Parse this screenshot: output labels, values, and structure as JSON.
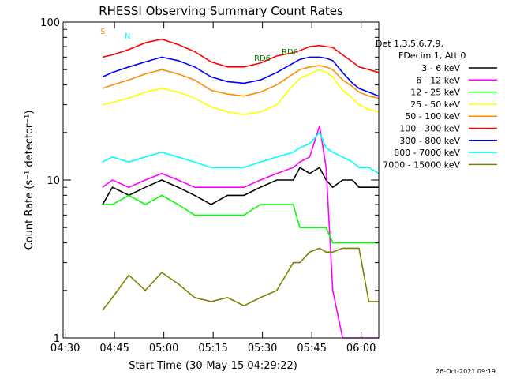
{
  "chart_data": {
    "type": "line",
    "title": "RHESSI Observing Summary Count Rates",
    "xlabel": "Start Time (30-May-15 04:29:22)",
    "ylabel": "Count Rate (s⁻¹ detector⁻¹)",
    "y_scale": "log",
    "ylim": [
      1,
      100
    ],
    "xlim_minutes": [
      0,
      96
    ],
    "x_ticks": [
      "04:30",
      "04:45",
      "05:00",
      "05:15",
      "05:30",
      "05:45",
      "06:00"
    ],
    "y_ticks": [
      "1",
      "10",
      "100"
    ],
    "timestamp": "26-Oct-2021 09:19",
    "legend_header": [
      "Det 1,3,5,6,7,9,",
      "FDecim 1, Att 0"
    ],
    "series": [
      {
        "name": "3 - 6 keV",
        "color": "#000000",
        "x": [
          12,
          15,
          20,
          25,
          30,
          35,
          40,
          45,
          50,
          55,
          60,
          65,
          70,
          72,
          75,
          78,
          80,
          82,
          85,
          88,
          90,
          93,
          96
        ],
        "y": [
          7,
          9,
          8,
          9,
          10,
          9,
          8,
          7,
          8,
          8,
          9,
          10,
          10,
          12,
          11,
          12,
          10,
          9,
          10,
          10,
          9,
          9,
          9
        ]
      },
      {
        "name": "6 - 12 keV",
        "color": "#ff00ff",
        "x": [
          12,
          15,
          20,
          25,
          30,
          35,
          40,
          45,
          50,
          55,
          60,
          65,
          70,
          72,
          75,
          78,
          80,
          82,
          85,
          88,
          90,
          93,
          96
        ],
        "y": [
          9,
          10,
          9,
          10,
          11,
          10,
          9,
          9,
          9,
          9,
          10,
          11,
          12,
          13,
          14,
          22,
          12,
          2,
          1,
          1,
          1,
          1,
          1
        ]
      },
      {
        "name": "12 - 25 keV",
        "color": "#00ff00",
        "x": [
          12,
          15,
          20,
          25,
          30,
          35,
          40,
          45,
          50,
          55,
          60,
          65,
          70,
          72,
          75,
          78,
          80,
          82,
          85,
          88,
          90,
          93,
          96
        ],
        "y": [
          7,
          7,
          8,
          7,
          8,
          7,
          6,
          6,
          6,
          6,
          7,
          7,
          7,
          5,
          5,
          5,
          5,
          4,
          4,
          4,
          4,
          4,
          4
        ]
      },
      {
        "name": "25 - 50 keV",
        "color": "#ffff00",
        "x": [
          12,
          15,
          20,
          25,
          30,
          35,
          40,
          45,
          50,
          55,
          60,
          65,
          70,
          72,
          75,
          78,
          80,
          82,
          85,
          88,
          90,
          93,
          96
        ],
        "y": [
          30,
          31,
          33,
          36,
          38,
          36,
          33,
          29,
          27,
          26,
          27,
          30,
          40,
          44,
          47,
          50,
          48,
          45,
          37,
          33,
          30,
          28,
          27
        ]
      },
      {
        "name": "50 - 100 keV",
        "color": "#ff8c00",
        "x": [
          12,
          15,
          20,
          25,
          30,
          35,
          40,
          45,
          50,
          55,
          60,
          65,
          70,
          72,
          75,
          78,
          80,
          82,
          85,
          88,
          90,
          93,
          96
        ],
        "y": [
          38,
          40,
          43,
          47,
          50,
          47,
          43,
          37,
          35,
          34,
          36,
          40,
          47,
          50,
          52,
          53,
          52,
          50,
          43,
          39,
          36,
          34,
          33
        ]
      },
      {
        "name": "100 - 300 keV",
        "color": "#ff0000",
        "x": [
          12,
          15,
          20,
          25,
          30,
          35,
          40,
          45,
          50,
          55,
          60,
          65,
          70,
          72,
          75,
          78,
          80,
          82,
          85,
          88,
          90,
          93,
          96
        ],
        "y": [
          60,
          62,
          67,
          74,
          78,
          72,
          65,
          56,
          52,
          52,
          55,
          61,
          64,
          66,
          70,
          71,
          70,
          69,
          62,
          56,
          52,
          50,
          48
        ]
      },
      {
        "name": "300 - 800 keV",
        "color": "#0000ff",
        "x": [
          12,
          15,
          20,
          25,
          30,
          35,
          40,
          45,
          50,
          55,
          60,
          65,
          70,
          72,
          75,
          78,
          80,
          82,
          85,
          88,
          90,
          93,
          96
        ],
        "y": [
          45,
          48,
          52,
          56,
          60,
          57,
          52,
          45,
          42,
          41,
          43,
          48,
          55,
          58,
          60,
          60,
          59,
          57,
          48,
          41,
          38,
          36,
          34
        ]
      },
      {
        "name": "800 - 7000 keV",
        "color": "#00ffff",
        "x": [
          12,
          15,
          20,
          25,
          30,
          35,
          40,
          45,
          50,
          55,
          60,
          65,
          70,
          72,
          75,
          78,
          80,
          82,
          85,
          88,
          90,
          93,
          96
        ],
        "y": [
          13,
          14,
          13,
          14,
          15,
          14,
          13,
          12,
          12,
          12,
          13,
          14,
          15,
          16,
          17,
          20,
          16,
          15,
          14,
          13,
          12,
          12,
          11
        ]
      },
      {
        "name": "7000 - 15000 keV",
        "color": "#808000",
        "x": [
          12,
          15,
          20,
          25,
          30,
          35,
          40,
          45,
          50,
          55,
          60,
          65,
          70,
          72,
          75,
          78,
          80,
          82,
          85,
          88,
          90,
          93,
          96
        ],
        "y": [
          1.5,
          1.8,
          2.5,
          2,
          2.6,
          2.2,
          1.8,
          1.7,
          1.8,
          1.6,
          1.8,
          2,
          3,
          3,
          3.5,
          3.7,
          3.5,
          3.5,
          3.7,
          3.7,
          3.7,
          1.7,
          1.7
        ]
      }
    ],
    "annotations": [
      {
        "text": "S",
        "color": "#ff8c00"
      },
      {
        "text": "N",
        "color": "#00ffff"
      },
      {
        "text": "RD6",
        "color": "#008000"
      },
      {
        "text": "RD0",
        "color": "#008000"
      }
    ]
  }
}
